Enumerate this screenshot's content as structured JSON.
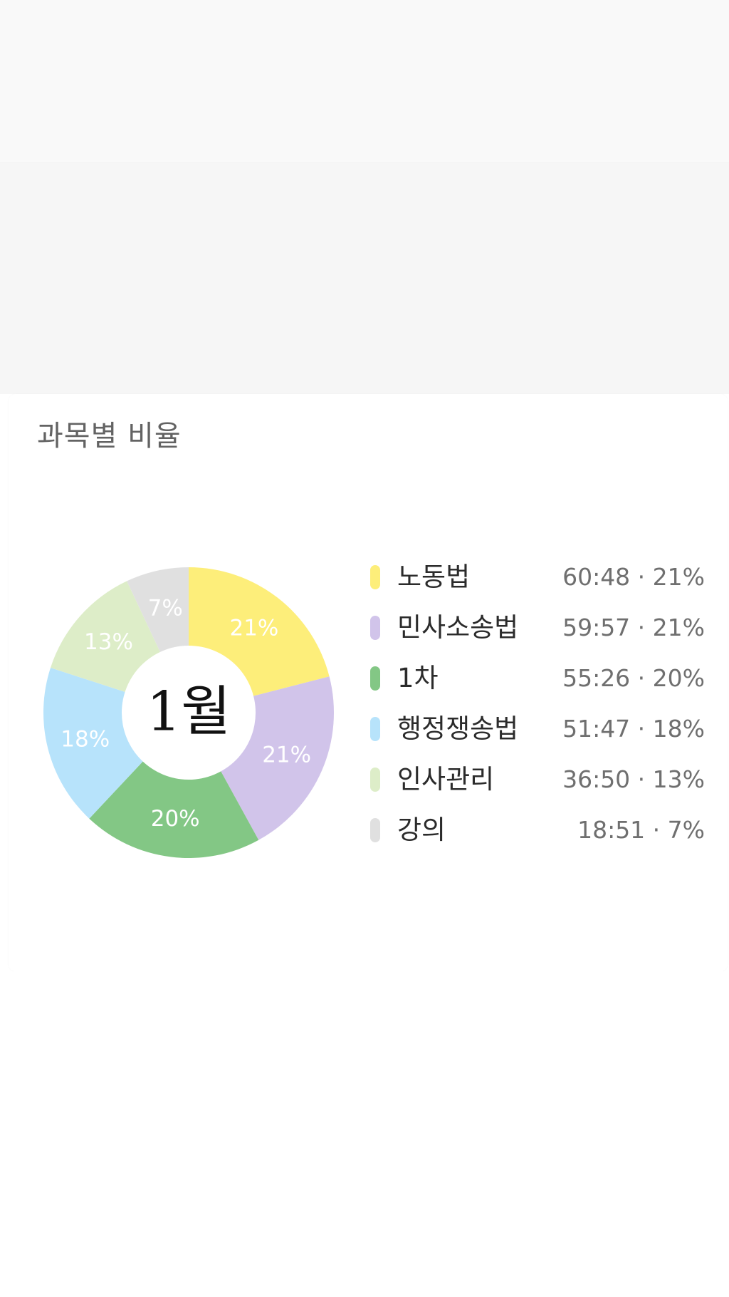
{
  "section": {
    "title": "과목별 비율"
  },
  "chart_data": {
    "type": "pie",
    "title": "과목별 비율",
    "center_label": "1월",
    "slices": [
      {
        "label": "노동법",
        "time": "60:48",
        "percent": 21,
        "value_text": "60:48 · 21%",
        "color": "#fdee7a"
      },
      {
        "label": "민사소송법",
        "time": "59:57",
        "percent": 21,
        "value_text": "59:57 · 21%",
        "color": "#d1c4ea"
      },
      {
        "label": "1차",
        "time": "55:26",
        "percent": 20,
        "value_text": "55:26 · 20%",
        "color": "#83c785"
      },
      {
        "label": "행정쟁송법",
        "time": "51:47",
        "percent": 18,
        "value_text": "51:47 · 18%",
        "color": "#b7e3fb"
      },
      {
        "label": "인사관리",
        "time": "36:50",
        "percent": 13,
        "value_text": "36:50 · 13%",
        "color": "#ddedc8"
      },
      {
        "label": "강의",
        "time": "18:51",
        "percent": 7,
        "value_text": "18:51 · 7%",
        "color": "#e0e0e0"
      }
    ]
  }
}
